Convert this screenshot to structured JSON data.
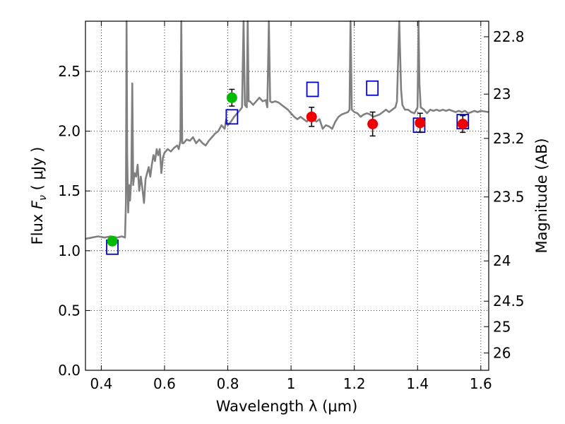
{
  "chart_data": {
    "type": "scatter",
    "xlabel": "Wavelength  λ (μm)",
    "ylabel": "Flux  F_ν  ( μJy )",
    "ylabel_parts": {
      "prefix": "Flux  ",
      "symbol": "F",
      "subscript": "ν",
      "suffix": "  ( μJy )"
    },
    "y2label": "Magnitude (AB)",
    "xlim": [
      0.35,
      1.625
    ],
    "ylim": [
      0.0,
      2.92
    ],
    "grid": true,
    "x_ticks": [
      {
        "value": 0.4,
        "label": "0.4"
      },
      {
        "value": 0.6,
        "label": "0.6"
      },
      {
        "value": 0.8,
        "label": "0.8"
      },
      {
        "value": 1.0,
        "label": "1"
      },
      {
        "value": 1.2,
        "label": "1.2"
      },
      {
        "value": 1.4,
        "label": "1.4"
      },
      {
        "value": 1.6,
        "label": "1.6"
      }
    ],
    "y_ticks": [
      {
        "value": 0.0,
        "label": "0.0"
      },
      {
        "value": 0.5,
        "label": "0.5"
      },
      {
        "value": 1.0,
        "label": "1.0"
      },
      {
        "value": 1.5,
        "label": "1.5"
      },
      {
        "value": 2.0,
        "label": "2.0"
      },
      {
        "value": 2.5,
        "label": "2.5"
      }
    ],
    "y2_ticks": [
      {
        "flux": 2.79,
        "label": "22.8"
      },
      {
        "flux": 2.31,
        "label": "23"
      },
      {
        "flux": 1.94,
        "label": "23.2"
      },
      {
        "flux": 1.45,
        "label": "23.5"
      },
      {
        "flux": 0.915,
        "label": "24"
      },
      {
        "flux": 0.578,
        "label": "24.5"
      },
      {
        "flux": 0.365,
        "label": "25"
      },
      {
        "flux": 0.145,
        "label": "26"
      }
    ],
    "series": [
      {
        "kind": "line",
        "color": "#808080",
        "points": [
          [
            0.35,
            1.1
          ],
          [
            0.37,
            1.11
          ],
          [
            0.39,
            1.12
          ],
          [
            0.41,
            1.11
          ],
          [
            0.43,
            1.12
          ],
          [
            0.45,
            1.11
          ],
          [
            0.465,
            1.12
          ],
          [
            0.475,
            1.11
          ],
          [
            0.478,
            1.4
          ],
          [
            0.48,
            2.92
          ],
          [
            0.482,
            1.8
          ],
          [
            0.485,
            1.32
          ],
          [
            0.488,
            1.55
          ],
          [
            0.491,
            1.42
          ],
          [
            0.495,
            1.6
          ],
          [
            0.498,
            2.4
          ],
          [
            0.501,
            1.55
          ],
          [
            0.505,
            1.65
          ],
          [
            0.51,
            1.62
          ],
          [
            0.515,
            1.72
          ],
          [
            0.52,
            1.5
          ],
          [
            0.525,
            1.62
          ],
          [
            0.53,
            1.52
          ],
          [
            0.535,
            1.4
          ],
          [
            0.54,
            1.6
          ],
          [
            0.545,
            1.65
          ],
          [
            0.55,
            1.7
          ],
          [
            0.555,
            1.62
          ],
          [
            0.56,
            1.72
          ],
          [
            0.565,
            1.8
          ],
          [
            0.57,
            1.75
          ],
          [
            0.575,
            1.85
          ],
          [
            0.58,
            1.8
          ],
          [
            0.585,
            1.85
          ],
          [
            0.59,
            1.65
          ],
          [
            0.595,
            1.78
          ],
          [
            0.6,
            1.82
          ],
          [
            0.61,
            1.85
          ],
          [
            0.62,
            1.83
          ],
          [
            0.63,
            1.86
          ],
          [
            0.64,
            1.88
          ],
          [
            0.645,
            1.85
          ],
          [
            0.65,
            1.92
          ],
          [
            0.653,
            2.92
          ],
          [
            0.656,
            1.9
          ],
          [
            0.66,
            1.9
          ],
          [
            0.67,
            1.93
          ],
          [
            0.68,
            1.92
          ],
          [
            0.69,
            1.95
          ],
          [
            0.7,
            1.9
          ],
          [
            0.71,
            1.93
          ],
          [
            0.72,
            1.9
          ],
          [
            0.73,
            1.88
          ],
          [
            0.74,
            1.92
          ],
          [
            0.75,
            1.95
          ],
          [
            0.76,
            1.98
          ],
          [
            0.77,
            2.0
          ],
          [
            0.78,
            2.05
          ],
          [
            0.79,
            2.02
          ],
          [
            0.795,
            2.1
          ],
          [
            0.8,
            2.05
          ],
          [
            0.81,
            2.08
          ],
          [
            0.82,
            2.12
          ],
          [
            0.83,
            2.15
          ],
          [
            0.84,
            2.18
          ],
          [
            0.845,
            2.2
          ],
          [
            0.85,
            2.92
          ],
          [
            0.854,
            2.22
          ],
          [
            0.86,
            2.2
          ],
          [
            0.863,
            2.92
          ],
          [
            0.866,
            2.25
          ],
          [
            0.87,
            2.25
          ],
          [
            0.88,
            2.22
          ],
          [
            0.89,
            2.25
          ],
          [
            0.9,
            2.28
          ],
          [
            0.91,
            2.25
          ],
          [
            0.92,
            2.26
          ],
          [
            0.925,
            2.2
          ],
          [
            0.93,
            2.92
          ],
          [
            0.934,
            2.25
          ],
          [
            0.94,
            2.24
          ],
          [
            0.95,
            2.25
          ],
          [
            0.96,
            2.24
          ],
          [
            0.97,
            2.22
          ],
          [
            0.98,
            2.2
          ],
          [
            0.99,
            2.18
          ],
          [
            1.0,
            2.15
          ],
          [
            1.01,
            2.12
          ],
          [
            1.02,
            2.1
          ],
          [
            1.03,
            2.12
          ],
          [
            1.04,
            2.1
          ],
          [
            1.05,
            2.08
          ],
          [
            1.06,
            2.12
          ],
          [
            1.07,
            2.1
          ],
          [
            1.08,
            2.08
          ],
          [
            1.09,
            2.1
          ],
          [
            1.1,
            2.02
          ],
          [
            1.11,
            2.05
          ],
          [
            1.12,
            2.04
          ],
          [
            1.13,
            2.02
          ],
          [
            1.14,
            2.08
          ],
          [
            1.15,
            2.12
          ],
          [
            1.16,
            2.14
          ],
          [
            1.17,
            2.15
          ],
          [
            1.18,
            2.16
          ],
          [
            1.185,
            2.18
          ],
          [
            1.188,
            2.92
          ],
          [
            1.192,
            2.18
          ],
          [
            1.2,
            2.16
          ],
          [
            1.21,
            2.15
          ],
          [
            1.22,
            2.12
          ],
          [
            1.23,
            2.14
          ],
          [
            1.24,
            2.15
          ],
          [
            1.25,
            2.14
          ],
          [
            1.26,
            2.12
          ],
          [
            1.27,
            2.13
          ],
          [
            1.28,
            2.14
          ],
          [
            1.29,
            2.16
          ],
          [
            1.3,
            2.18
          ],
          [
            1.31,
            2.16
          ],
          [
            1.32,
            2.18
          ],
          [
            1.33,
            2.2
          ],
          [
            1.335,
            2.25
          ],
          [
            1.342,
            2.92
          ],
          [
            1.348,
            2.35
          ],
          [
            1.352,
            2.22
          ],
          [
            1.36,
            2.18
          ],
          [
            1.37,
            2.18
          ],
          [
            1.38,
            2.16
          ],
          [
            1.39,
            2.15
          ],
          [
            1.4,
            2.2
          ],
          [
            1.403,
            2.92
          ],
          [
            1.406,
            2.4
          ],
          [
            1.41,
            2.2
          ],
          [
            1.42,
            2.18
          ],
          [
            1.43,
            2.15
          ],
          [
            1.44,
            2.18
          ],
          [
            1.45,
            2.17
          ],
          [
            1.46,
            2.18
          ],
          [
            1.47,
            2.17
          ],
          [
            1.48,
            2.18
          ],
          [
            1.49,
            2.17
          ],
          [
            1.5,
            2.18
          ],
          [
            1.51,
            2.17
          ],
          [
            1.52,
            2.16
          ],
          [
            1.53,
            2.17
          ],
          [
            1.54,
            2.16
          ],
          [
            1.55,
            2.17
          ],
          [
            1.56,
            2.15
          ],
          [
            1.57,
            2.16
          ],
          [
            1.58,
            2.17
          ],
          [
            1.59,
            2.16
          ],
          [
            1.6,
            2.17
          ],
          [
            1.625,
            2.16
          ]
        ]
      },
      {
        "kind": "open-square",
        "color": "#0000cc",
        "points": [
          [
            0.435,
            1.03
          ],
          [
            0.813,
            2.12
          ],
          [
            1.068,
            2.35
          ],
          [
            1.257,
            2.36
          ],
          [
            1.405,
            2.05
          ],
          [
            1.543,
            2.08
          ]
        ]
      },
      {
        "kind": "circle",
        "color": "#00bb00",
        "points": [
          [
            0.435,
            1.08
          ],
          [
            0.813,
            2.28
          ]
        ],
        "errors": [
          0.03,
          0.07
        ]
      },
      {
        "kind": "circle",
        "color": "#ee0000",
        "points": [
          [
            1.065,
            2.12
          ],
          [
            1.258,
            2.06
          ],
          [
            1.408,
            2.07
          ],
          [
            1.543,
            2.06
          ]
        ],
        "errors": [
          0.08,
          0.1,
          0.08,
          0.07
        ]
      }
    ]
  }
}
